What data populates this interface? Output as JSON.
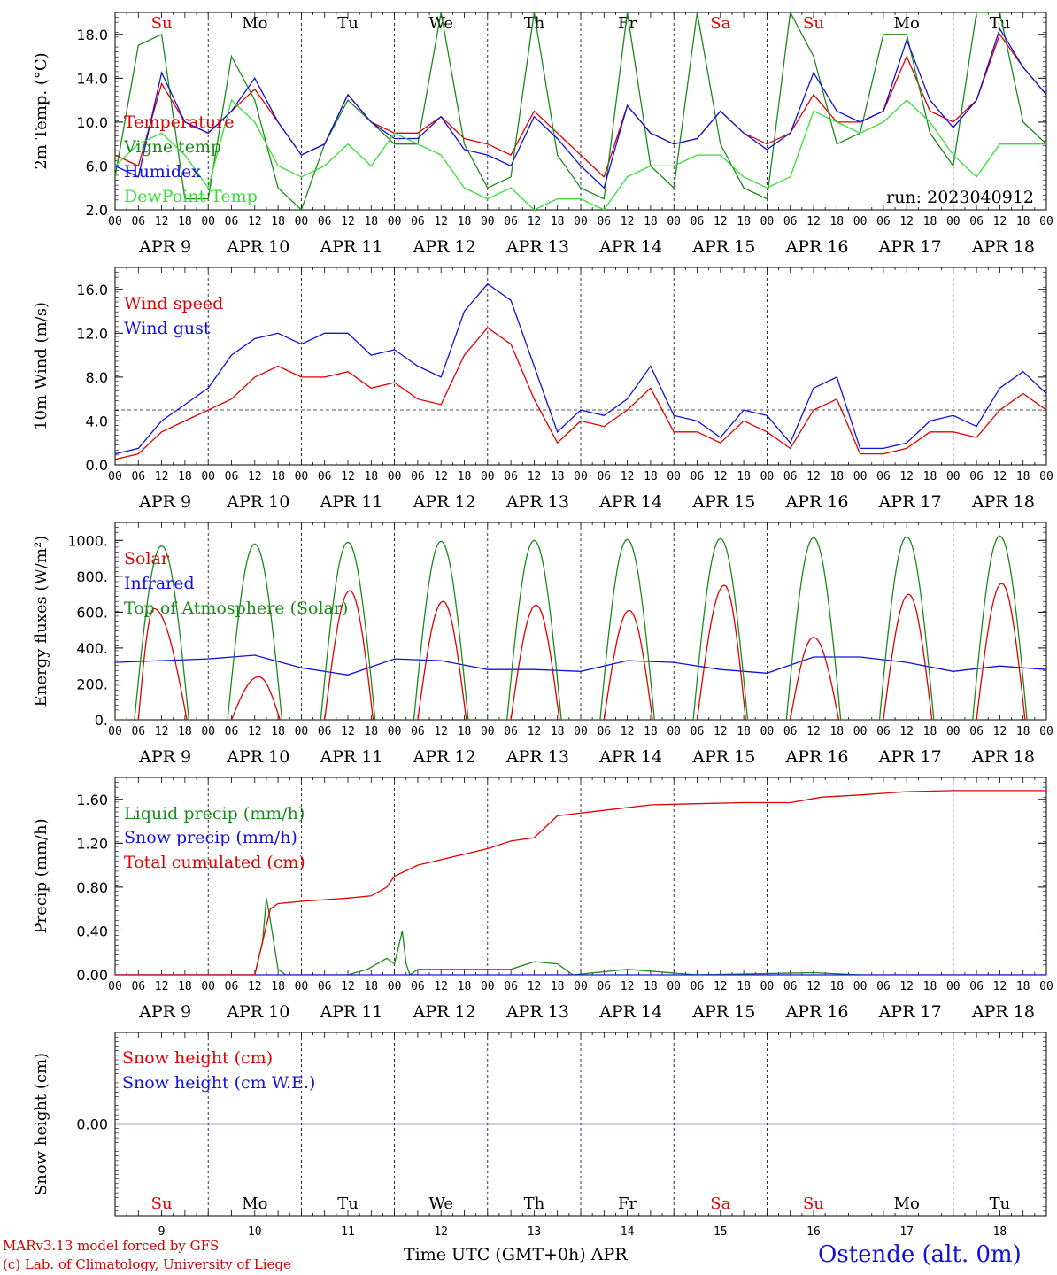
{
  "run_label": "run: 2023040912",
  "x_hour_labels": [
    "00",
    "06",
    "12",
    "18"
  ],
  "x_end_label": "00",
  "dates": [
    "APR  9",
    "APR 10",
    "APR 11",
    "APR 12",
    "APR 13",
    "APR 14",
    "APR 15",
    "APR 16",
    "APR 17",
    "APR 18"
  ],
  "weekdays": [
    "Su",
    "Mo",
    "Tu",
    "We",
    "Th",
    "Fr",
    "Sa",
    "Su",
    "Mo",
    "Tu"
  ],
  "weekend_flags": [
    true,
    false,
    false,
    false,
    false,
    false,
    true,
    true,
    false,
    false
  ],
  "weekday_colors": {
    "weekend": "#e00000",
    "weekday": "#000000"
  },
  "bottom_day_numbers": [
    "9",
    "10",
    "11",
    "12",
    "13",
    "14",
    "15",
    "16",
    "17",
    "18"
  ],
  "footer": {
    "model": "MARv3.13 model forced by GFS",
    "credit": "(c) Lab. of Climatology, University of Liege",
    "xlabel": "Time UTC (GMT+0h) APR",
    "station": "Ostende (alt. 0m)"
  },
  "chart_data": [
    {
      "type": "line",
      "ylabel": "2m Temp. (°C)",
      "ylim": [
        2,
        20
      ],
      "yticks": [
        "2.0",
        "6.0",
        "10.0",
        "14.0",
        "18.0"
      ],
      "yticks_values": [
        2,
        6,
        10,
        14,
        18
      ],
      "x_unit": "hours since APR 9 00 UTC",
      "series": [
        {
          "name": "Temperature",
          "color": "#e00000",
          "x": [
            0,
            6,
            12,
            18,
            24,
            30,
            36,
            42,
            48,
            54,
            60,
            66,
            72,
            78,
            84,
            90,
            96,
            102,
            108,
            114,
            120,
            126,
            132,
            138,
            144,
            150,
            156,
            162,
            168,
            174,
            180,
            186,
            192,
            198,
            204,
            210,
            216,
            222,
            228,
            234,
            240
          ],
          "y": [
            7,
            6,
            13.5,
            10,
            9,
            11,
            13,
            10,
            7,
            8,
            12.5,
            10,
            9,
            9,
            10.5,
            8.5,
            8,
            7,
            11,
            9,
            7,
            5,
            11.5,
            9,
            8,
            8.5,
            11,
            9,
            8,
            9,
            12.5,
            10,
            10,
            11,
            16,
            11,
            10,
            12,
            18,
            15,
            12.5
          ]
        },
        {
          "name": "Vigne temp",
          "color": "#1a8a1a",
          "x": [
            0,
            6,
            12,
            18,
            24,
            30,
            36,
            42,
            48,
            54,
            60,
            66,
            72,
            78,
            84,
            90,
            96,
            102,
            108,
            114,
            120,
            126,
            132,
            138,
            144,
            150,
            156,
            162,
            168,
            174,
            180,
            186,
            192,
            198,
            204,
            210,
            216,
            222,
            228,
            234,
            240
          ],
          "y": [
            5,
            17,
            18,
            3,
            3,
            16,
            12,
            4,
            2,
            8,
            12,
            10,
            8,
            8,
            20,
            8,
            4,
            5,
            20,
            7,
            4,
            3,
            20,
            6,
            4,
            20,
            8,
            4,
            3,
            20,
            16,
            8,
            9,
            18,
            18,
            9,
            6,
            20,
            20,
            10,
            8
          ]
        },
        {
          "name": "Humidex",
          "color": "#1010e0",
          "x": [
            0,
            6,
            12,
            18,
            24,
            30,
            36,
            42,
            48,
            54,
            60,
            66,
            72,
            78,
            84,
            90,
            96,
            102,
            108,
            114,
            120,
            126,
            132,
            138,
            144,
            150,
            156,
            162,
            168,
            174,
            180,
            186,
            192,
            198,
            204,
            210,
            216,
            222,
            228,
            234,
            240
          ],
          "y": [
            6,
            5,
            14.5,
            10,
            9,
            11,
            14,
            10,
            7,
            8,
            12.5,
            10,
            8.5,
            8.5,
            10.5,
            7.5,
            7,
            6,
            10.5,
            8.5,
            6,
            4,
            11.5,
            9,
            8,
            8.5,
            11,
            9,
            7.5,
            9,
            14.5,
            11,
            10,
            11,
            17.5,
            12,
            9.5,
            12,
            18.5,
            15,
            12.5
          ]
        },
        {
          "name": "DewPoint Temp",
          "color": "#33e033",
          "x": [
            0,
            6,
            12,
            18,
            24,
            30,
            36,
            42,
            48,
            54,
            60,
            66,
            72,
            78,
            84,
            90,
            96,
            102,
            108,
            114,
            120,
            126,
            132,
            138,
            144,
            150,
            156,
            162,
            168,
            174,
            180,
            186,
            192,
            198,
            204,
            210,
            216,
            222,
            228,
            234,
            240
          ],
          "y": [
            6,
            8,
            9,
            7,
            4,
            12,
            10,
            6,
            5,
            6,
            8,
            6,
            9,
            8,
            7,
            4,
            3,
            4,
            2,
            3,
            3,
            2,
            5,
            6,
            6,
            7,
            7,
            5,
            4,
            5,
            11,
            10,
            9,
            10,
            12,
            10,
            7,
            5,
            8,
            8,
            8
          ]
        }
      ]
    },
    {
      "type": "line",
      "ylabel": "10m Wind (m/s)",
      "ylim": [
        0,
        18
      ],
      "yticks": [
        "0.0",
        "4.0",
        "8.0",
        "12.0",
        "16.0"
      ],
      "yticks_values": [
        0,
        4,
        8,
        12,
        16
      ],
      "reference_line": 5,
      "x_unit": "hours since APR 9 00 UTC",
      "series": [
        {
          "name": "Wind speed",
          "color": "#e00000",
          "x": [
            0,
            6,
            12,
            18,
            24,
            30,
            36,
            42,
            48,
            54,
            60,
            66,
            72,
            78,
            84,
            90,
            96,
            102,
            108,
            114,
            120,
            126,
            132,
            138,
            144,
            150,
            156,
            162,
            168,
            174,
            180,
            186,
            192,
            198,
            204,
            210,
            216,
            222,
            228,
            234,
            240
          ],
          "y": [
            0.5,
            1,
            3,
            4,
            5,
            6,
            8,
            9,
            8,
            8,
            8.5,
            7,
            7.5,
            6,
            5.5,
            10,
            12.5,
            11,
            6,
            2,
            4,
            3.5,
            5,
            7,
            3,
            3,
            2,
            4,
            3,
            1.5,
            5,
            6,
            1,
            1,
            1.5,
            3,
            3,
            2.5,
            5,
            6.5,
            5
          ]
        },
        {
          "name": "Wind gust",
          "color": "#1010e0",
          "x": [
            0,
            6,
            12,
            18,
            24,
            30,
            36,
            42,
            48,
            54,
            60,
            66,
            72,
            78,
            84,
            90,
            96,
            102,
            108,
            114,
            120,
            126,
            132,
            138,
            144,
            150,
            156,
            162,
            168,
            174,
            180,
            186,
            192,
            198,
            204,
            210,
            216,
            222,
            228,
            234,
            240
          ],
          "y": [
            1,
            1.5,
            4,
            5.5,
            7,
            10,
            11.5,
            12,
            11,
            12,
            12,
            10,
            10.5,
            9,
            8,
            14,
            16.5,
            15,
            9,
            3,
            5,
            4.5,
            6,
            9,
            4.5,
            4,
            2.5,
            5,
            4.5,
            2,
            7,
            8,
            1.5,
            1.5,
            2,
            4,
            4.5,
            3.5,
            7,
            8.5,
            6.5
          ]
        }
      ]
    },
    {
      "type": "line",
      "ylabel": "Energy fluxes (W/m²)",
      "ylim": [
        0,
        1100
      ],
      "yticks": [
        "0.",
        "200.",
        "400.",
        "600.",
        "800.",
        "1000."
      ],
      "yticks_values": [
        0,
        200,
        400,
        600,
        800,
        1000
      ],
      "x_unit": "hours since APR 9 00 UTC",
      "series": [
        {
          "name": "Solar",
          "color": "#e00000",
          "peaks": [
            620,
            240,
            720,
            660,
            640,
            610,
            750,
            460,
            700,
            760
          ],
          "peak_hours": [
            10,
            13,
            12.5,
            12.5,
            12.5,
            12.5,
            13,
            12,
            12.5,
            12.5
          ]
        },
        {
          "name": "Infrared",
          "color": "#1010e0",
          "x": [
            0,
            12,
            24,
            36,
            48,
            60,
            72,
            84,
            96,
            108,
            120,
            132,
            144,
            156,
            168,
            180,
            192,
            204,
            216,
            228,
            240
          ],
          "y": [
            320,
            330,
            340,
            360,
            290,
            250,
            340,
            330,
            280,
            280,
            270,
            330,
            320,
            280,
            260,
            350,
            350,
            320,
            270,
            300,
            280
          ]
        },
        {
          "name": "Top of Atmosphere (Solar)",
          "color": "#1a8a1a",
          "peaks": [
            970,
            980,
            990,
            995,
            1000,
            1005,
            1010,
            1015,
            1020,
            1025
          ],
          "daylight": [
            5,
            19
          ]
        }
      ]
    },
    {
      "type": "line",
      "ylabel": "Precip (mm/h)",
      "ylim": [
        0,
        1.8
      ],
      "yticks": [
        "0.00",
        "0.40",
        "0.80",
        "1.20",
        "1.60"
      ],
      "yticks_values": [
        0,
        0.4,
        0.8,
        1.2,
        1.6
      ],
      "x_unit": "hours since APR 9 00 UTC",
      "series": [
        {
          "name": "Liquid precip (mm/h)",
          "color": "#1a8a1a",
          "x": [
            0,
            36,
            38,
            39,
            40,
            42,
            44,
            60,
            65,
            70,
            72,
            74,
            75,
            76,
            78,
            90,
            102,
            108,
            114,
            118,
            132,
            150,
            180,
            192,
            240
          ],
          "y": [
            0,
            0,
            0.3,
            0.7,
            0.5,
            0.05,
            0,
            0,
            0.05,
            0.15,
            0.1,
            0.4,
            0.1,
            0,
            0.05,
            0.05,
            0.05,
            0.12,
            0.1,
            0,
            0.05,
            0,
            0.02,
            0,
            0
          ]
        },
        {
          "name": "Snow precip (mm/h)",
          "color": "#1010e0",
          "x": [
            0,
            240
          ],
          "y": [
            0,
            0
          ]
        },
        {
          "name": "Total cumulated (cm)",
          "color": "#e00000",
          "x": [
            0,
            36,
            40,
            42,
            48,
            60,
            66,
            70,
            72,
            78,
            84,
            96,
            102,
            108,
            114,
            126,
            138,
            150,
            162,
            174,
            182,
            192,
            204,
            216,
            240
          ],
          "y": [
            0,
            0,
            0.6,
            0.65,
            0.67,
            0.7,
            0.72,
            0.8,
            0.9,
            1.0,
            1.05,
            1.15,
            1.22,
            1.25,
            1.45,
            1.5,
            1.55,
            1.56,
            1.57,
            1.57,
            1.62,
            1.64,
            1.67,
            1.68,
            1.68
          ]
        }
      ]
    },
    {
      "type": "line",
      "ylabel": "Snow height (cm)",
      "ylim": [
        -1,
        1
      ],
      "yticks": [
        "0.00"
      ],
      "yticks_values": [
        0
      ],
      "x_unit": "hours since APR 9 00 UTC",
      "series": [
        {
          "name": "Snow height (cm)",
          "color": "#e00000",
          "x": [
            0,
            240
          ],
          "y": [
            0,
            0
          ]
        },
        {
          "name": "Snow height (cm W.E.)",
          "color": "#1010e0",
          "x": [
            0,
            240
          ],
          "y": [
            0,
            0
          ]
        }
      ]
    }
  ]
}
